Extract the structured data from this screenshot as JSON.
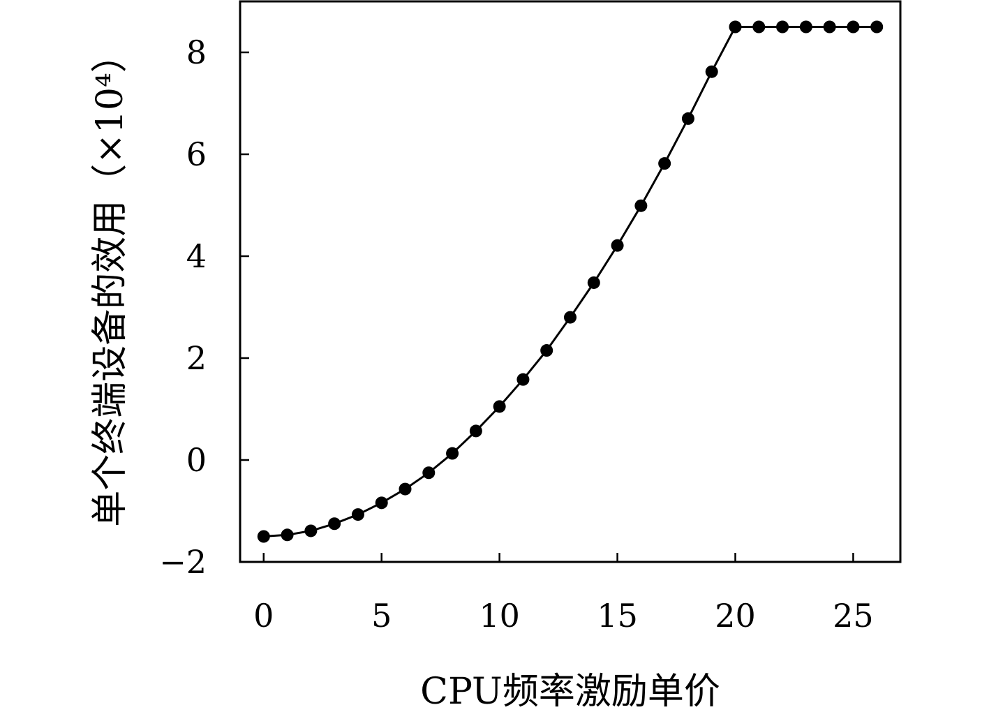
{
  "chart_data": {
    "type": "line",
    "xlabel": "CPU频率激励单价",
    "ylabel": "单个终端设备的效用（×10⁴）",
    "xlim": [
      -1,
      27
    ],
    "ylim": [
      -2,
      9
    ],
    "xticks": [
      0,
      5,
      10,
      15,
      20,
      25
    ],
    "yticks": [
      -2,
      0,
      2,
      4,
      6,
      8
    ],
    "ytick_labels": [
      "−2",
      "0",
      "2",
      "4",
      "6",
      "8"
    ],
    "grid": false,
    "marker": "filled-circle",
    "line_color": "#000000",
    "series": [
      {
        "x": [
          0,
          1,
          2,
          3,
          4,
          5,
          6,
          7,
          8,
          9,
          10,
          11,
          12,
          13,
          14,
          15,
          16,
          17,
          18,
          19,
          20,
          21,
          22,
          23,
          24,
          25,
          26
        ],
        "values": [
          -1.5,
          -1.47,
          -1.39,
          -1.25,
          -1.07,
          -0.84,
          -0.57,
          -0.25,
          0.13,
          0.57,
          1.05,
          1.58,
          2.15,
          2.8,
          3.48,
          4.21,
          4.99,
          5.82,
          6.7,
          7.62,
          8.5,
          8.5,
          8.5,
          8.5,
          8.5,
          8.5,
          8.5
        ]
      }
    ]
  }
}
